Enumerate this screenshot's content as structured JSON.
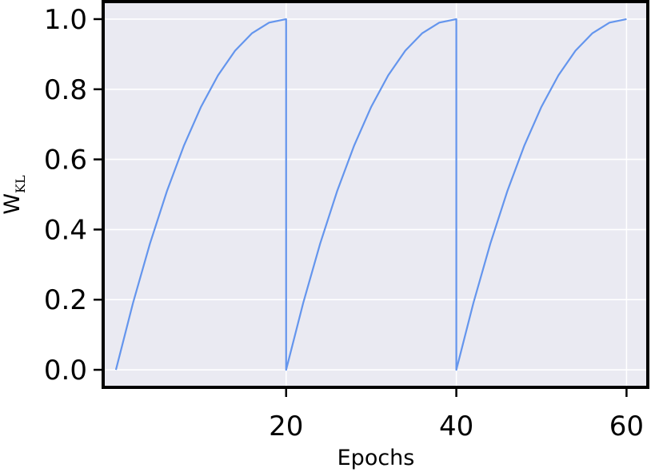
{
  "chart_data": {
    "type": "line",
    "title": "",
    "xlabel": "Epochs",
    "ylabel": {
      "main": "W",
      "sub": "KL"
    },
    "xlim": [
      -1.5,
      62.5
    ],
    "ylim": [
      -0.05,
      1.05
    ],
    "xticks": [
      20,
      40,
      60
    ],
    "xtick_labels": [
      "20",
      "40",
      "60"
    ],
    "yticks": [
      0.0,
      0.2,
      0.4,
      0.6,
      0.8,
      1.0
    ],
    "ytick_labels": [
      "0.0",
      "0.2",
      "0.4",
      "0.6",
      "0.8",
      "1.0"
    ],
    "grid": true,
    "legend": "none",
    "series": [
      {
        "x": [
          0,
          2,
          4,
          6,
          8,
          10,
          12,
          14,
          16,
          18,
          20,
          20,
          22,
          24,
          26,
          28,
          30,
          32,
          34,
          36,
          38,
          40,
          40,
          42,
          44,
          46,
          48,
          50,
          52,
          54,
          56,
          58,
          60
        ],
        "y": [
          0.0,
          0.19,
          0.36,
          0.51,
          0.64,
          0.75,
          0.84,
          0.91,
          0.96,
          0.99,
          1.0,
          0.0,
          0.19,
          0.36,
          0.51,
          0.64,
          0.75,
          0.84,
          0.91,
          0.96,
          0.99,
          1.0,
          0.0,
          0.19,
          0.36,
          0.51,
          0.64,
          0.75,
          0.84,
          0.91,
          0.96,
          0.99,
          1.0
        ]
      }
    ],
    "colors": {
      "line": "#6495ed",
      "plot_background": "#eaeaf2",
      "grid": "#ffffff",
      "frame": "#000000"
    }
  }
}
